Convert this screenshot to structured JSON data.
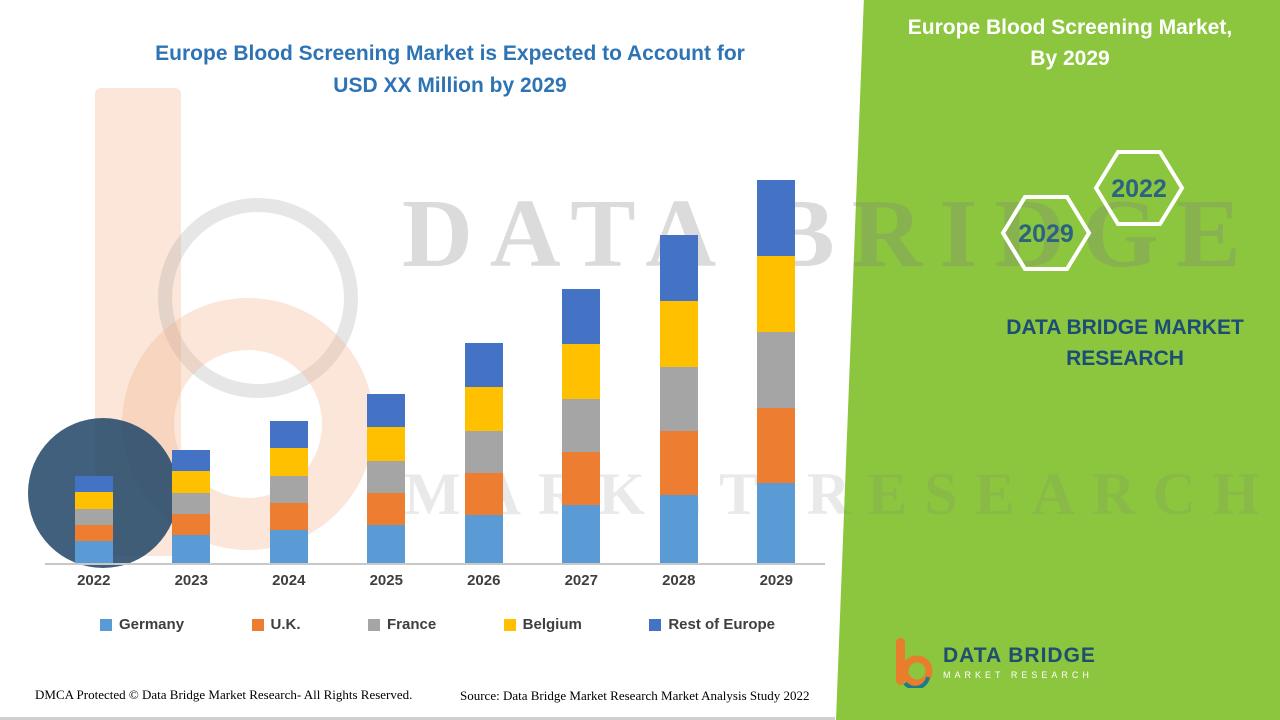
{
  "title": {
    "line1": "Europe Blood Screening Market is Expected to Account for",
    "line2": "USD XX Million by 2029"
  },
  "side_panel": {
    "heading_line1": "Europe Blood Screening Market,",
    "heading_line2": "By 2029",
    "hexagon_back": "2029",
    "hexagon_front": "2022",
    "brand_line1": "DATA BRIDGE MARKET",
    "brand_line2": "RESEARCH",
    "panel_color": "#8CC63E"
  },
  "watermark": {
    "line1": "DATA BRIDGE",
    "line2": "MARKET RESEARCH"
  },
  "logo": {
    "title": "DATA BRIDGE",
    "subtitle": "MARKET RESEARCH",
    "icon": "data-bridge-b-icon"
  },
  "footer": {
    "dmca": "DMCA Protected © Data Bridge Market Research- All Rights Reserved.",
    "source": "Source: Data Bridge Market Research Market Analysis Study 2022"
  },
  "colors": {
    "title_blue": "#2E74B5",
    "panel_green": "#8CC63E",
    "brand_navy": "#1C4D77",
    "axis_text": "#3F3F3F"
  },
  "chart_data": {
    "type": "bar",
    "stacked": true,
    "title": "Europe Blood Screening Market is Expected to Account for USD XX Million by 2029",
    "unit": "USD Million (XX placeholder, axis unlabeled)",
    "categories": [
      "2022",
      "2023",
      "2024",
      "2025",
      "2026",
      "2027",
      "2028",
      "2029"
    ],
    "series": [
      {
        "name": "Germany",
        "color": "#5B9BD5",
        "values": [
          2.2,
          2.8,
          3.3,
          3.8,
          4.8,
          5.8,
          6.8,
          8.0
        ]
      },
      {
        "name": "U.K.",
        "color": "#ED7D31",
        "values": [
          1.6,
          2.1,
          2.7,
          3.2,
          4.2,
          5.3,
          6.4,
          7.5
        ]
      },
      {
        "name": "France",
        "color": "#A5A5A5",
        "values": [
          1.6,
          2.1,
          2.7,
          3.2,
          4.2,
          5.3,
          6.4,
          7.6
        ]
      },
      {
        "name": "Belgium",
        "color": "#FFC000",
        "values": [
          1.7,
          2.2,
          2.8,
          3.4,
          4.4,
          5.5,
          6.6,
          7.6
        ]
      },
      {
        "name": "Rest of Europe",
        "color": "#4472C4",
        "values": [
          1.6,
          2.1,
          2.7,
          3.3,
          4.4,
          5.5,
          6.6,
          7.6
        ]
      }
    ],
    "ylim": [
      0,
      40
    ],
    "y_axis_visible": false,
    "gridlines": false,
    "legend_position": "bottom"
  }
}
